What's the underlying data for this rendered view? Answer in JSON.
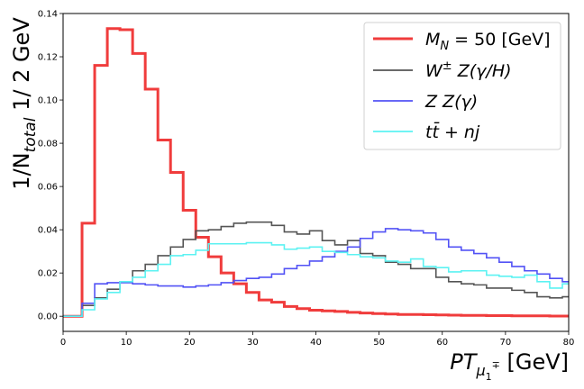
{
  "chart_data": {
    "type": "line",
    "drawstyle": "step",
    "xlabel": "PT",
    "xlabel_sub": "μ",
    "xlabel_subsub": "1",
    "xlabel_sub_sup": "∓",
    "xlabel_unit": "[GeV]",
    "ylabel": "1/N",
    "ylabel_sub": "total",
    "ylabel_suffix": " 1/ 2 GeV",
    "xlim": [
      0,
      80
    ],
    "ylim": [
      -0.007,
      0.14
    ],
    "xticks": [
      "0",
      "10",
      "20",
      "30",
      "40",
      "50",
      "60",
      "70",
      "80"
    ],
    "yticks": [
      "0.00",
      "0.02",
      "0.04",
      "0.06",
      "0.08",
      "0.10",
      "0.12",
      "0.14"
    ],
    "grid": false,
    "legend_position": "top-right",
    "bin_edges": [
      0,
      1,
      3,
      5,
      7,
      9,
      11,
      13,
      15,
      17,
      19,
      21,
      23,
      25,
      27,
      29,
      31,
      33,
      35,
      37,
      39,
      41,
      43,
      45,
      47,
      49,
      51,
      53,
      55,
      57,
      59,
      61,
      63,
      65,
      67,
      69,
      71,
      73,
      75,
      77,
      79,
      80
    ],
    "series": [
      {
        "name": "M_N = 50 [GeV]",
        "name_main": "M",
        "name_sub": "N",
        "name_rest": " = 50 [GeV]",
        "color": "#f03c3c",
        "width": 3,
        "opacity": 1,
        "values": [
          0,
          0,
          0.043,
          0.116,
          0.133,
          0.1325,
          0.1215,
          0.105,
          0.0815,
          0.0665,
          0.049,
          0.0365,
          0.0275,
          0.02,
          0.015,
          0.011,
          0.0075,
          0.0065,
          0.0045,
          0.0035,
          0.0028,
          0.0025,
          0.0022,
          0.0018,
          0.0015,
          0.0012,
          0.001,
          0.0008,
          0.0008,
          0.0007,
          0.0006,
          0.0005,
          0.0004,
          0.0004,
          0.0003,
          0.0003,
          0.0002,
          0.0002,
          0.0002,
          0.0001,
          0.0001
        ]
      },
      {
        "name": "W± Z(γ/H)",
        "name_main": "W",
        "name_sup": "±",
        "name_rest": "  Z(γ/H)",
        "color": "#555555",
        "width": 1.6,
        "opacity": 1,
        "values": [
          0,
          0,
          0.005,
          0.0085,
          0.0125,
          0.016,
          0.021,
          0.024,
          0.028,
          0.032,
          0.0355,
          0.0395,
          0.04,
          0.0415,
          0.043,
          0.0435,
          0.0435,
          0.042,
          0.039,
          0.038,
          0.0395,
          0.035,
          0.033,
          0.035,
          0.029,
          0.028,
          0.025,
          0.024,
          0.022,
          0.022,
          0.018,
          0.016,
          0.015,
          0.0145,
          0.013,
          0.013,
          0.012,
          0.011,
          0.009,
          0.0085,
          0.009
        ]
      },
      {
        "name": "Z Z(γ)",
        "name_main": "Z Z(γ)",
        "color": "#5252f5",
        "width": 1.6,
        "opacity": 1,
        "values": [
          0,
          0,
          0.006,
          0.015,
          0.0155,
          0.0155,
          0.015,
          0.0145,
          0.014,
          0.014,
          0.0135,
          0.014,
          0.0145,
          0.0155,
          0.0165,
          0.0175,
          0.018,
          0.0195,
          0.022,
          0.0235,
          0.0255,
          0.0275,
          0.03,
          0.032,
          0.036,
          0.039,
          0.0405,
          0.04,
          0.0395,
          0.0385,
          0.0355,
          0.032,
          0.0305,
          0.029,
          0.027,
          0.025,
          0.023,
          0.021,
          0.0195,
          0.0175,
          0.016
        ]
      },
      {
        "name": "tt̄ + nj",
        "name_main": "tt̄ + nj",
        "color": "#5cf2f2",
        "width": 1.6,
        "opacity": 1,
        "values": [
          0,
          0,
          0.003,
          0.008,
          0.011,
          0.016,
          0.018,
          0.021,
          0.024,
          0.028,
          0.0285,
          0.0305,
          0.0335,
          0.0335,
          0.0335,
          0.034,
          0.034,
          0.033,
          0.031,
          0.0315,
          0.032,
          0.03,
          0.0295,
          0.0285,
          0.0275,
          0.027,
          0.0255,
          0.025,
          0.0265,
          0.023,
          0.0225,
          0.0205,
          0.021,
          0.021,
          0.019,
          0.0185,
          0.018,
          0.019,
          0.016,
          0.013,
          0.015
        ]
      }
    ]
  }
}
